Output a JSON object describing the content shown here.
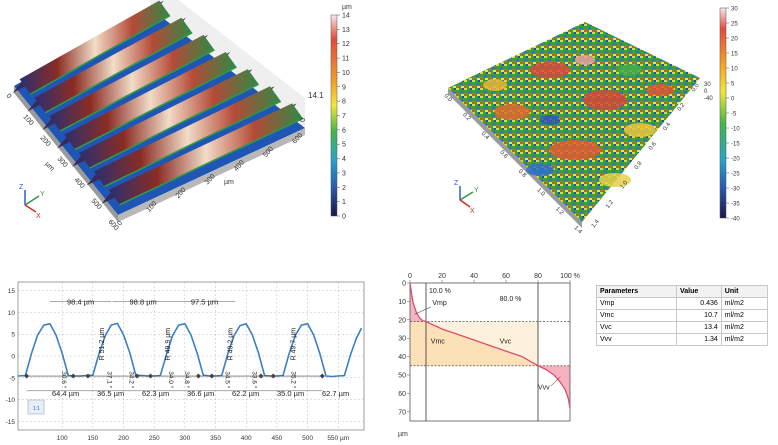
{
  "colors": {
    "profile_line": "#3b7fc4",
    "mat_rise": "#d9a64a",
    "vmc_fill": "#fbe0b8",
    "vvc_fill": "#fdf1de",
    "vvv_fill": "#f4a3b4",
    "vmp_fill": "#f4a3b4",
    "bearing_curve": "#d94f6a"
  },
  "colorbar_left": {
    "unit": "µm",
    "ticks": [
      "14",
      "13",
      "12",
      "11",
      "10",
      "9",
      "8",
      "7",
      "6",
      "5",
      "4",
      "3",
      "2",
      "1",
      "0"
    ]
  },
  "colorbar_right": {
    "ticks": [
      "30",
      "25",
      "20",
      "15",
      "10",
      "5",
      "0",
      "-5",
      "-10",
      "-15",
      "-20",
      "-25",
      "-30",
      "-35",
      "-40"
    ]
  },
  "surface_left": {
    "x_ticks": [
      "0",
      "100",
      "200",
      "300",
      "400",
      "500",
      "600"
    ],
    "y_ticks": [
      "0",
      "100",
      "200",
      "300",
      "400",
      "500",
      "600"
    ],
    "x_unit": "µm",
    "y_unit": "µm",
    "height_label": "14.1",
    "height_zero": "0",
    "axis_x": "X",
    "axis_y": "Y",
    "axis_z": "Z"
  },
  "surface_right": {
    "x_ticks": [
      "0.0",
      "0.2",
      "0.4",
      "0.6",
      "0.8",
      "1.0",
      "1.2",
      "1.4"
    ],
    "y_ticks": [
      "0.0",
      "0.2",
      "0.4",
      "0.6",
      "0.8",
      "1.0",
      "1.2",
      "1.4"
    ],
    "z_ticks": [
      "30",
      "0",
      "-40"
    ],
    "axis_x": "X",
    "axis_y": "Y",
    "axis_z": "Z"
  },
  "chart_data": [
    {
      "type": "line",
      "x_ticks": [
        "100",
        "150",
        "200",
        "250",
        "300",
        "350",
        "400",
        "450",
        "500",
        "550 µm"
      ],
      "y_ticks": [
        "15",
        "10",
        "5",
        "0",
        "-5",
        "-10",
        "-15"
      ],
      "xlim": [
        28,
        592
      ],
      "ylim": [
        -17,
        17
      ],
      "series": [
        {
          "x": [
            28,
            40,
            50,
            60,
            70,
            80,
            90,
            100,
            110,
            120,
            130,
            140,
            150,
            160,
            170,
            180,
            190,
            200,
            210,
            220,
            230,
            240,
            250,
            260,
            270,
            280,
            290,
            300,
            310,
            320,
            330,
            340,
            350,
            360,
            370,
            380,
            390,
            400,
            410,
            420,
            430,
            440,
            450,
            460,
            470,
            480,
            490,
            500,
            510,
            520,
            530,
            540,
            550,
            560,
            570,
            580,
            588
          ],
          "y": [
            -4.6,
            -4.5,
            0.6,
            4.8,
            7.1,
            7.4,
            4.8,
            0.6,
            -4.5,
            -4.6,
            -4.6,
            -4.5,
            -4.4,
            0.5,
            4.6,
            7.1,
            7.5,
            4.9,
            0.8,
            -4.4,
            -4.5,
            -4.6,
            -4.6,
            -4.5,
            0.4,
            4.7,
            7.1,
            7.4,
            4.8,
            0.7,
            -4.4,
            -4.6,
            -4.6,
            -4.5,
            0.5,
            4.6,
            7.0,
            7.4,
            4.9,
            0.7,
            -4.5,
            -4.6,
            -4.6,
            -4.5,
            0.6,
            4.7,
            7.1,
            7.4,
            4.8,
            0.6,
            -4.6,
            -4.7,
            -4.6,
            -4.5,
            0.3,
            4.2,
            6.4
          ]
        }
      ],
      "pitch_labels": [
        "98.4 µm",
        "98.8 µm",
        "97.5 µm"
      ],
      "bottom_labels": [
        "64.4 µm",
        "36.5 µm",
        "62.3 µm",
        "36.6 µm",
        "62.2 µm",
        "35.0 µm",
        "62.7 µm"
      ],
      "radius_labels": [
        "R 51.2 µm",
        "R 49.9 µm",
        "R 49.2 µm",
        "R 49.7 µm"
      ],
      "angle_labels": [
        "30.6 °",
        "37.1 °",
        "34.2 °",
        "34.0 °",
        "34.8 °",
        "34.5 °",
        "33.6 °",
        "35.2 °"
      ],
      "scale_icon": "1:1"
    },
    {
      "type": "area",
      "x_ticks": [
        "0",
        "20",
        "40",
        "60",
        "80",
        "100 %"
      ],
      "y_ticks": [
        "0",
        "10",
        "20",
        "30",
        "40",
        "50",
        "60",
        "70"
      ],
      "y_unit": "µm",
      "xlim": [
        0,
        100
      ],
      "ylim": [
        0,
        75
      ],
      "top_labels": [
        "10.0 %",
        "80.0 %"
      ],
      "zone_labels": [
        "Vmp",
        "Vmc",
        "Vvc",
        "Vvv"
      ],
      "mr1": 10,
      "mr2": 80,
      "c1": 21,
      "c2": 45,
      "series": [
        {
          "x": [
            0,
            1,
            2,
            4,
            6,
            8,
            10,
            20,
            30,
            40,
            50,
            60,
            70,
            80,
            85,
            90,
            94,
            97,
            99,
            100
          ],
          "y": [
            0,
            6,
            11,
            16,
            19,
            20.5,
            21,
            25,
            28,
            31,
            34,
            37,
            40,
            45,
            47,
            50,
            54,
            58,
            63,
            68
          ]
        }
      ]
    }
  ],
  "parameters": {
    "headers": [
      "Parameters",
      "Value",
      "Unit"
    ],
    "rows": [
      [
        "Vmp",
        "0.436",
        "ml/m2"
      ],
      [
        "Vmc",
        "10.7",
        "ml/m2"
      ],
      [
        "Vvc",
        "13.4",
        "ml/m2"
      ],
      [
        "Vvv",
        "1.34",
        "ml/m2"
      ]
    ]
  }
}
